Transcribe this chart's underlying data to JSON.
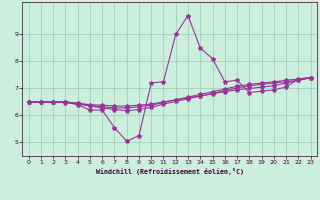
{
  "xlabel": "Windchill (Refroidissement éolien,°C)",
  "xlim": [
    -0.5,
    23.5
  ],
  "ylim": [
    4.5,
    10.2
  ],
  "xticks": [
    0,
    1,
    2,
    3,
    4,
    5,
    6,
    7,
    8,
    9,
    10,
    11,
    12,
    13,
    14,
    15,
    16,
    17,
    18,
    19,
    20,
    21,
    22,
    23
  ],
  "yticks": [
    5,
    6,
    7,
    8,
    9
  ],
  "background_color": "#cceedd",
  "line_color": "#993399",
  "grid_color": "#99ccbb",
  "lines": [
    {
      "x": [
        0,
        1,
        2,
        3,
        4,
        5,
        6,
        7,
        8,
        9,
        10,
        11,
        12,
        13,
        14,
        15,
        16,
        17,
        18,
        19,
        20,
        21,
        22,
        23
      ],
      "y": [
        6.5,
        6.5,
        6.5,
        6.5,
        6.4,
        6.2,
        6.2,
        5.55,
        5.05,
        5.25,
        7.2,
        7.25,
        9.0,
        9.7,
        8.5,
        8.1,
        7.25,
        7.3,
        6.85,
        6.9,
        6.95,
        7.05,
        7.35,
        7.4
      ]
    },
    {
      "x": [
        0,
        1,
        2,
        3,
        4,
        5,
        6,
        7,
        8,
        9,
        10,
        11,
        12,
        13,
        14,
        15,
        16,
        17,
        18,
        19,
        20,
        21,
        22,
        23
      ],
      "y": [
        6.5,
        6.5,
        6.5,
        6.5,
        6.45,
        6.4,
        6.38,
        6.35,
        6.35,
        6.38,
        6.42,
        6.5,
        6.58,
        6.65,
        6.72,
        6.8,
        6.88,
        6.95,
        7.0,
        7.05,
        7.1,
        7.2,
        7.3,
        7.4
      ]
    },
    {
      "x": [
        0,
        1,
        2,
        3,
        4,
        5,
        6,
        7,
        8,
        9,
        10,
        11,
        12,
        13,
        14,
        15,
        16,
        17,
        18,
        19,
        20,
        21,
        22,
        23
      ],
      "y": [
        6.5,
        6.5,
        6.5,
        6.5,
        6.45,
        6.38,
        6.32,
        6.28,
        6.28,
        6.32,
        6.38,
        6.48,
        6.58,
        6.68,
        6.78,
        6.88,
        6.98,
        7.08,
        7.15,
        7.2,
        7.25,
        7.3,
        7.35,
        7.4
      ]
    },
    {
      "x": [
        0,
        1,
        2,
        3,
        4,
        5,
        6,
        7,
        8,
        9,
        10,
        11,
        12,
        13,
        14,
        15,
        16,
        17,
        18,
        19,
        20,
        21,
        22,
        23
      ],
      "y": [
        6.5,
        6.5,
        6.5,
        6.48,
        6.42,
        6.35,
        6.28,
        6.22,
        6.18,
        6.22,
        6.3,
        6.42,
        6.52,
        6.62,
        6.72,
        6.82,
        6.92,
        7.02,
        7.1,
        7.15,
        7.2,
        7.25,
        7.3,
        7.4
      ]
    }
  ]
}
